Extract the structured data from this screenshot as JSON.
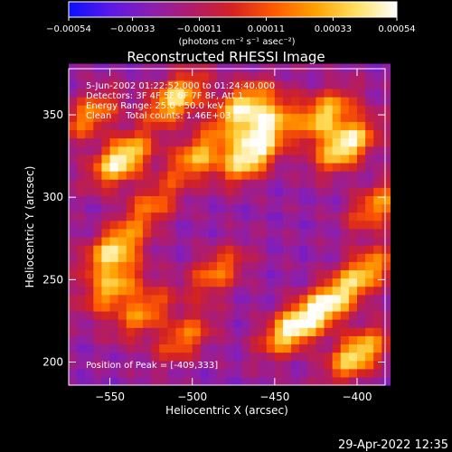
{
  "chart_data": {
    "type": "heatmap",
    "title": "Reconstructed RHESSI Image",
    "xlabel": "Heliocentric X (arcsec)",
    "ylabel": "Heliocentric Y (arcsec)",
    "xlim": [
      -575,
      -383
    ],
    "ylim": [
      186,
      378
    ],
    "x_ticks": [
      {
        "value": -550,
        "label": "−550"
      },
      {
        "value": -500,
        "label": "−500"
      },
      {
        "value": -450,
        "label": "−450"
      },
      {
        "value": -400,
        "label": "−400"
      }
    ],
    "y_ticks": [
      {
        "value": 200,
        "label": "200"
      },
      {
        "value": 250,
        "label": "250"
      },
      {
        "value": 300,
        "label": "300"
      },
      {
        "value": 350,
        "label": "350"
      }
    ],
    "annotations": [
      "5-Jun-2002 01:22:52.000 to 01:24:40.000",
      "Detectors: 3F 4F 5F 6F 7F 8F, Att 1",
      "Energy Range: 25.0 - 50.0 keV",
      "Clean     Total counts: 1.46E+03"
    ],
    "peak_label": "Position of Peak = [-409,333]",
    "colorbar": {
      "range": [
        -0.00054,
        0.00054
      ],
      "tick_labels": [
        "−0.00054",
        "−0.00033",
        "−0.00011",
        "0.00011",
        "0.00033",
        "0.00054"
      ],
      "units": "(photons cm⁻² s⁻¹ asec⁻²)",
      "colors": [
        "#0a10ff",
        "#5b18e8",
        "#8a1fb0",
        "#b01c6a",
        "#d42222",
        "#ff5a00",
        "#ffa000",
        "#ffe060",
        "#ffffff"
      ]
    },
    "bright_features": [
      {
        "x": -543,
        "y": 323,
        "intensity": 1.0
      },
      {
        "x": -548,
        "y": 268,
        "intensity": 0.85
      },
      {
        "x": -548,
        "y": 245,
        "intensity": 0.7
      },
      {
        "x": -562,
        "y": 350,
        "intensity": 0.6
      },
      {
        "x": -510,
        "y": 360,
        "intensity": 0.85
      },
      {
        "x": -497,
        "y": 325,
        "intensity": 0.7
      },
      {
        "x": -530,
        "y": 230,
        "intensity": 0.6
      },
      {
        "x": -505,
        "y": 215,
        "intensity": 0.55
      },
      {
        "x": -465,
        "y": 325,
        "intensity": 0.95
      },
      {
        "x": -470,
        "y": 355,
        "intensity": 0.85
      },
      {
        "x": -455,
        "y": 345,
        "intensity": 0.75
      },
      {
        "x": -440,
        "y": 220,
        "intensity": 0.9
      },
      {
        "x": -418,
        "y": 235,
        "intensity": 0.85
      },
      {
        "x": -400,
        "y": 205,
        "intensity": 0.9
      },
      {
        "x": -395,
        "y": 255,
        "intensity": 0.7
      },
      {
        "x": -420,
        "y": 350,
        "intensity": 0.8
      },
      {
        "x": -407,
        "y": 332,
        "intensity": 1.0
      },
      {
        "x": -388,
        "y": 295,
        "intensity": 0.6
      },
      {
        "x": -485,
        "y": 255,
        "intensity": 0.55
      },
      {
        "x": -525,
        "y": 295,
        "intensity": 0.5
      }
    ]
  },
  "footer": {
    "timestamp": "29-Apr-2022 12:35"
  }
}
